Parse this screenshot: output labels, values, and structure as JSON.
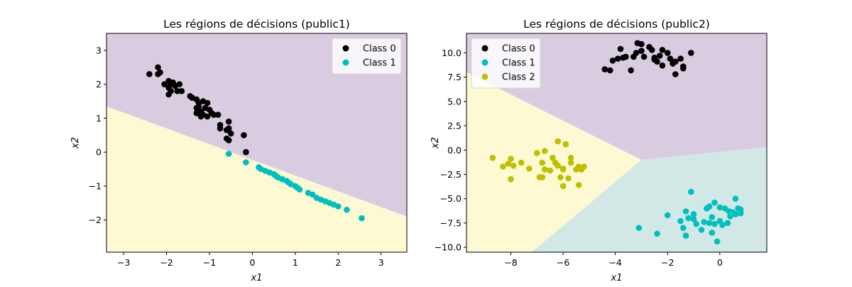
{
  "chart_data": [
    {
      "type": "scatter",
      "title": "Les régions de décisions (public1)",
      "xlabel": "x1",
      "ylabel": "x2",
      "xlim": [
        -3.4,
        3.6
      ],
      "ylim": [
        -2.95,
        3.5
      ],
      "xticks": [
        "−3",
        "−2",
        "−1",
        "0",
        "1",
        "2",
        "3"
      ],
      "xtick_values": [
        -3,
        -2,
        -1,
        0,
        1,
        2,
        3
      ],
      "yticks": [
        "−2",
        "−1",
        "0",
        "1",
        "2",
        "3"
      ],
      "ytick_values": [
        -2,
        -1,
        0,
        1,
        2,
        3
      ],
      "legend": "top-right",
      "regions": [
        {
          "class": "Class 0",
          "color": "#d9cce0",
          "polygon": [
            [
              -3.4,
              1.35
            ],
            [
              3.6,
              -1.9
            ],
            [
              3.6,
              3.5
            ],
            [
              -3.4,
              3.5
            ]
          ]
        },
        {
          "class": "Class 1",
          "color": "#fcf9d3",
          "polygon": [
            [
              -3.4,
              -2.95
            ],
            [
              3.6,
              -2.95
            ],
            [
              3.6,
              -1.9
            ],
            [
              -3.4,
              1.35
            ]
          ]
        }
      ],
      "series": [
        {
          "name": "Class 0",
          "color": "#000000",
          "points": [
            [
              -2.4,
              2.3
            ],
            [
              -2.2,
              2.5
            ],
            [
              -2.2,
              2.3
            ],
            [
              -2.15,
              2.35
            ],
            [
              -2.05,
              2.0
            ],
            [
              -1.95,
              2.1
            ],
            [
              -1.95,
              1.9
            ],
            [
              -1.9,
              2.0
            ],
            [
              -1.85,
              2.05
            ],
            [
              -1.8,
              1.95
            ],
            [
              -1.75,
              1.8
            ],
            [
              -1.7,
              2.0
            ],
            [
              -1.65,
              1.8
            ],
            [
              -1.95,
              1.7
            ],
            [
              -1.9,
              1.8
            ],
            [
              -1.45,
              1.65
            ],
            [
              -1.4,
              1.6
            ],
            [
              -1.3,
              1.55
            ],
            [
              -1.25,
              1.45
            ],
            [
              -1.15,
              1.5
            ],
            [
              -1.3,
              1.3
            ],
            [
              -1.25,
              1.35
            ],
            [
              -1.2,
              1.2
            ],
            [
              -1.1,
              1.3
            ],
            [
              -1.05,
              1.45
            ],
            [
              -1.0,
              1.25
            ],
            [
              -1.3,
              1.15
            ],
            [
              -1.15,
              1.1
            ],
            [
              -1.05,
              1.05
            ],
            [
              -0.95,
              1.15
            ],
            [
              -0.9,
              1.1
            ],
            [
              -0.8,
              1.1
            ],
            [
              -1.2,
              1.05
            ],
            [
              -0.75,
              0.8
            ],
            [
              -0.75,
              0.7
            ],
            [
              -0.6,
              0.65
            ],
            [
              -0.55,
              0.9
            ],
            [
              -0.55,
              0.7
            ],
            [
              -0.5,
              0.55
            ],
            [
              -0.6,
              0.4
            ],
            [
              -0.55,
              0.35
            ],
            [
              -0.2,
              0.5
            ],
            [
              -0.15,
              0.0
            ]
          ]
        },
        {
          "name": "Class 1",
          "color": "#00bfbf",
          "points": [
            [
              -0.55,
              -0.05
            ],
            [
              -0.15,
              -0.3
            ],
            [
              0.15,
              -0.45
            ],
            [
              0.2,
              -0.5
            ],
            [
              0.3,
              -0.55
            ],
            [
              0.4,
              -0.6
            ],
            [
              0.5,
              -0.65
            ],
            [
              0.55,
              -0.7
            ],
            [
              0.6,
              -0.75
            ],
            [
              0.7,
              -0.8
            ],
            [
              0.8,
              -0.85
            ],
            [
              0.85,
              -0.9
            ],
            [
              0.9,
              -0.95
            ],
            [
              1.0,
              -1.0
            ],
            [
              1.05,
              -1.05
            ],
            [
              1.1,
              -1.1
            ],
            [
              1.3,
              -1.2
            ],
            [
              1.4,
              -1.25
            ],
            [
              1.5,
              -1.35
            ],
            [
              1.6,
              -1.4
            ],
            [
              1.7,
              -1.45
            ],
            [
              1.8,
              -1.5
            ],
            [
              1.9,
              -1.55
            ],
            [
              2.0,
              -1.6
            ],
            [
              2.2,
              -1.7
            ],
            [
              2.55,
              -1.95
            ]
          ]
        }
      ]
    },
    {
      "type": "scatter",
      "title": "Les régions de décisions (public2)",
      "xlabel": "x1",
      "ylabel": "x2",
      "xlim": [
        -9.7,
        1.8
      ],
      "ylim": [
        -10.5,
        12.0
      ],
      "xticks": [
        "−8",
        "−6",
        "−4",
        "−2",
        "0"
      ],
      "xtick_values": [
        -8,
        -6,
        -4,
        -2,
        0
      ],
      "yticks": [
        "−10.0",
        "−7.5",
        "−5.0",
        "−2.5",
        "0.0",
        "2.5",
        "5.0",
        "7.5",
        "10.0"
      ],
      "ytick_values": [
        -10,
        -7.5,
        -5,
        -2.5,
        0,
        2.5,
        5,
        7.5,
        10
      ],
      "legend": "top-left",
      "regions": [
        {
          "class": "Class 0",
          "color": "#d9cce0",
          "polygon": [
            [
              -9.7,
              12.0
            ],
            [
              1.8,
              12.0
            ],
            [
              1.8,
              0.3
            ],
            [
              -3.0,
              -1.0
            ],
            [
              -9.7,
              8.0
            ]
          ]
        },
        {
          "class": "Class 2",
          "color": "#fcf9d3",
          "polygon": [
            [
              -9.7,
              8.0
            ],
            [
              -3.0,
              -1.0
            ],
            [
              -7.2,
              -10.5
            ],
            [
              -9.7,
              -10.5
            ]
          ]
        },
        {
          "class": "Class 1",
          "color": "#d2e8e6",
          "polygon": [
            [
              -3.0,
              -1.0
            ],
            [
              1.8,
              0.3
            ],
            [
              1.8,
              -10.5
            ],
            [
              -7.2,
              -10.5
            ]
          ]
        }
      ],
      "series": [
        {
          "name": "Class 0",
          "color": "#000000",
          "points": [
            [
              -4.4,
              8.3
            ],
            [
              -4.2,
              8.2
            ],
            [
              -4.1,
              9.2
            ],
            [
              -3.9,
              9.4
            ],
            [
              -3.8,
              10.4
            ],
            [
              -3.7,
              9.5
            ],
            [
              -3.6,
              9.6
            ],
            [
              -3.4,
              8.2
            ],
            [
              -3.3,
              9.6
            ],
            [
              -3.2,
              10.0
            ],
            [
              -3.15,
              11.0
            ],
            [
              -3.0,
              10.9
            ],
            [
              -3.0,
              10.2
            ],
            [
              -2.9,
              9.6
            ],
            [
              -2.7,
              10.6
            ],
            [
              -2.6,
              10.3
            ],
            [
              -2.5,
              9.5
            ],
            [
              -2.5,
              9.3
            ],
            [
              -2.4,
              9.1
            ],
            [
              -2.3,
              9.7
            ],
            [
              -2.2,
              10.3
            ],
            [
              -2.2,
              8.7
            ],
            [
              -2.0,
              10.0
            ],
            [
              -1.9,
              9.4
            ],
            [
              -1.8,
              8.9
            ],
            [
              -1.7,
              9.1
            ],
            [
              -1.7,
              7.8
            ],
            [
              -1.5,
              9.4
            ],
            [
              -1.4,
              8.4
            ],
            [
              -1.4,
              8.6
            ],
            [
              -1.1,
              10.0
            ]
          ]
        },
        {
          "name": "Class 1",
          "color": "#00bfbf",
          "points": [
            [
              -3.1,
              -8.0
            ],
            [
              -2.4,
              -8.6
            ],
            [
              -2.0,
              -6.7
            ],
            [
              -1.5,
              -7.3
            ],
            [
              -1.4,
              -8.0
            ],
            [
              -1.3,
              -6.3
            ],
            [
              -1.3,
              -8.8
            ],
            [
              -1.2,
              -7.0
            ],
            [
              -1.1,
              -4.3
            ],
            [
              -1.0,
              -6.6
            ],
            [
              -1.0,
              -7.1
            ],
            [
              -0.9,
              -7.6
            ],
            [
              -0.7,
              -8.2
            ],
            [
              -0.6,
              -7.4
            ],
            [
              -0.5,
              -6.0
            ],
            [
              -0.4,
              -7.5
            ],
            [
              -0.4,
              -5.8
            ],
            [
              -0.3,
              -6.9
            ],
            [
              -0.3,
              -8.5
            ],
            [
              -0.2,
              -7.6
            ],
            [
              -0.2,
              -5.4
            ],
            [
              -0.1,
              -9.4
            ],
            [
              0.0,
              -7.3
            ],
            [
              0.0,
              -5.9
            ],
            [
              0.1,
              -7.7
            ],
            [
              0.2,
              -6.0
            ],
            [
              0.3,
              -7.5
            ],
            [
              0.35,
              -6.3
            ],
            [
              0.4,
              -6.8
            ],
            [
              0.5,
              -6.4
            ],
            [
              0.6,
              -5.0
            ],
            [
              0.6,
              -6.6
            ],
            [
              0.7,
              -6.0
            ],
            [
              0.8,
              -6.5
            ],
            [
              0.8,
              -6.1
            ]
          ]
        },
        {
          "name": "Class 2",
          "color": "#bfbf00",
          "points": [
            [
              -8.7,
              -0.8
            ],
            [
              -8.3,
              -1.7
            ],
            [
              -8.1,
              -1.4
            ],
            [
              -8.0,
              -3.0
            ],
            [
              -8.0,
              -0.9
            ],
            [
              -7.9,
              -1.6
            ],
            [
              -7.6,
              -1.3
            ],
            [
              -7.3,
              -1.9
            ],
            [
              -7.0,
              -0.3
            ],
            [
              -6.9,
              -2.8
            ],
            [
              -6.8,
              -1.3
            ],
            [
              -6.8,
              -2.8
            ],
            [
              -6.7,
              -2.0
            ],
            [
              -6.7,
              -0.1
            ],
            [
              -6.5,
              -2.1
            ],
            [
              -6.4,
              -0.8
            ],
            [
              -6.3,
              -1.3
            ],
            [
              -6.2,
              0.9
            ],
            [
              -6.2,
              -1.6
            ],
            [
              -6.1,
              -2.8
            ],
            [
              -6.0,
              -2.0
            ],
            [
              -6.0,
              -1.9
            ],
            [
              -6.0,
              -3.7
            ],
            [
              -5.9,
              0.6
            ],
            [
              -5.8,
              -2.9
            ],
            [
              -5.7,
              -1.3
            ],
            [
              -5.7,
              -0.8
            ],
            [
              -5.5,
              -2.0
            ],
            [
              -5.4,
              -1.7
            ],
            [
              -5.4,
              -3.6
            ],
            [
              -5.3,
              -2.0
            ],
            [
              -5.2,
              -1.7
            ]
          ]
        }
      ]
    }
  ]
}
